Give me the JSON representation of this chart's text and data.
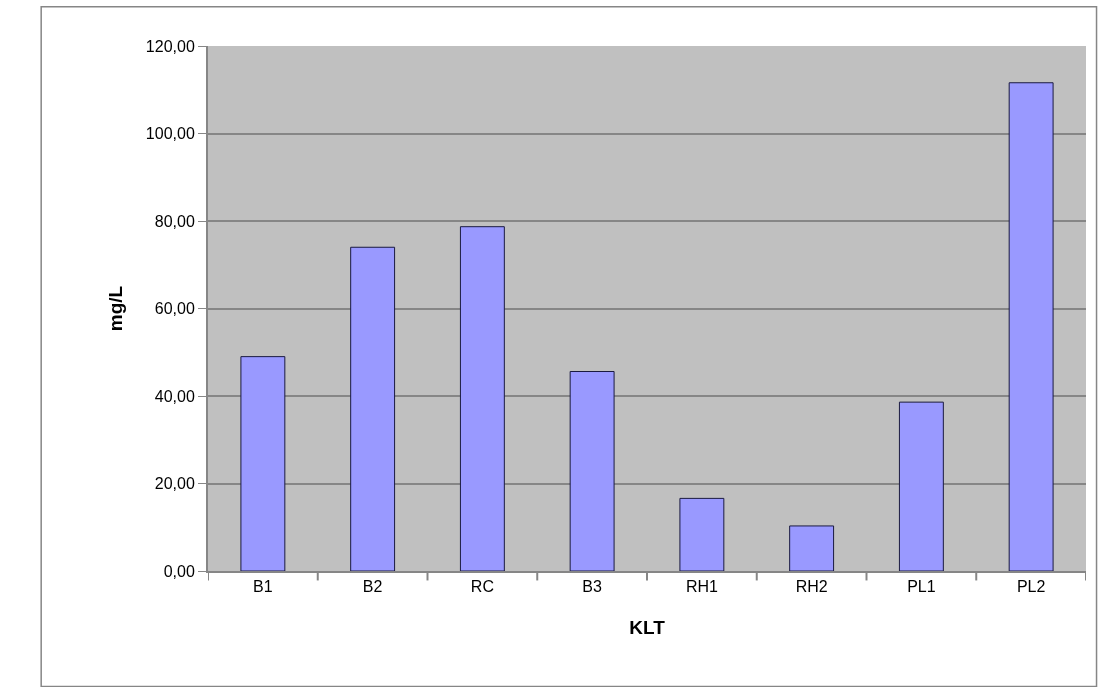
{
  "chart_data": {
    "type": "bar",
    "xlabel": "KLT",
    "ylabel": "mg/L",
    "categories": [
      "B1",
      "B2",
      "RC",
      "B3",
      "RH1",
      "RH2",
      "PL1",
      "PL2"
    ],
    "values": [
      49.0,
      74.0,
      78.7,
      45.6,
      16.6,
      10.3,
      38.6,
      111.6
    ],
    "color": "#9999ff",
    "ylim": [
      0,
      120
    ],
    "yticks": [
      {
        "value": 0,
        "label": "0,00"
      },
      {
        "value": 20,
        "label": "20,00"
      },
      {
        "value": 40,
        "label": "40,00"
      },
      {
        "value": 60,
        "label": "60,00"
      },
      {
        "value": 80,
        "label": "80,00"
      },
      {
        "value": 100,
        "label": "100,00"
      },
      {
        "value": 120,
        "label": "120,00"
      }
    ],
    "grid": "y"
  }
}
